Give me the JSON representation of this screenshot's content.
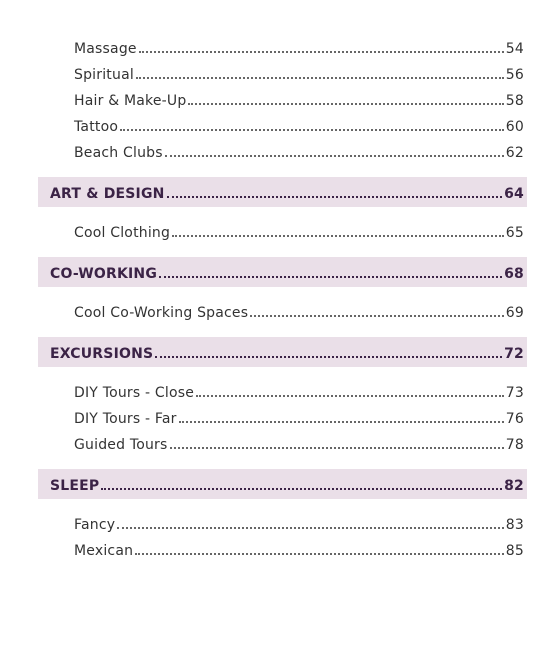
{
  "intro": {
    "entries": [
      {
        "title": "Massage",
        "page": 54
      },
      {
        "title": "Spiritual",
        "page": 56
      },
      {
        "title": "Hair & Make-Up",
        "page": 58
      },
      {
        "title": "Tattoo",
        "page": 60
      },
      {
        "title": "Beach Clubs",
        "page": 62
      }
    ]
  },
  "sections": [
    {
      "title": "ART & DESIGN",
      "page": 64,
      "entries": [
        {
          "title": "Cool Clothing",
          "page": 65
        }
      ]
    },
    {
      "title": "CO-WORKING",
      "page": 68,
      "entries": [
        {
          "title": "Cool Co-Working Spaces",
          "page": 69
        }
      ]
    },
    {
      "title": "EXCURSIONS",
      "page": 72,
      "entries": [
        {
          "title": "DIY Tours - Close",
          "page": 73
        },
        {
          "title": "DIY Tours - Far",
          "page": 76
        },
        {
          "title": "Guided Tours",
          "page": 78
        }
      ]
    },
    {
      "title": "SLEEP",
      "page": 82,
      "entries": [
        {
          "title": "Fancy",
          "page": 83
        },
        {
          "title": "Mexican",
          "page": 85
        }
      ]
    }
  ]
}
